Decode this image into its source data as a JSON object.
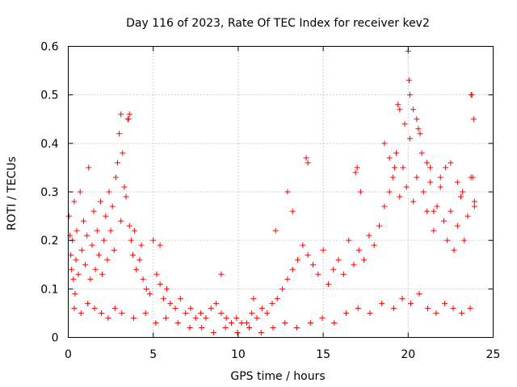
{
  "chart_data": {
    "type": "scatter",
    "title": "Day 116 of 2023, Rate Of TEC Index for receiver kev2",
    "xlabel": "GPS time / hours",
    "ylabel": "ROTI / TECUs",
    "xlim": [
      0,
      25
    ],
    "ylim": [
      0,
      0.6
    ],
    "xticks": [
      0,
      5,
      10,
      15,
      20,
      25
    ],
    "yticks": [
      0,
      0.1,
      0.2,
      0.3,
      0.4,
      0.5,
      0.6
    ],
    "grid": true,
    "marker": "+",
    "color": "#ff0000",
    "series": [
      {
        "name": "ROTI",
        "x": [
          0.05,
          0.1,
          0.15,
          0.2,
          0.25,
          0.3,
          0.35,
          0.4,
          0.45,
          0.5,
          0.6,
          0.7,
          0.8,
          0.9,
          1.0,
          1.1,
          1.2,
          1.3,
          1.4,
          1.5,
          1.6,
          1.7,
          1.8,
          1.9,
          2.0,
          2.1,
          2.2,
          2.3,
          2.4,
          2.5,
          2.6,
          2.7,
          2.8,
          2.9,
          3.0,
          3.1,
          3.2,
          3.3,
          3.4,
          3.5,
          3.6,
          3.7,
          3.8,
          3.9,
          4.0,
          4.2,
          4.4,
          4.6,
          4.8,
          5.0,
          5.2,
          5.4,
          5.6,
          5.8,
          6.0,
          6.3,
          6.6,
          6.9,
          7.2,
          7.5,
          7.8,
          8.1,
          8.4,
          8.7,
          9.0,
          9.3,
          9.6,
          9.9,
          10.2,
          10.5,
          10.8,
          11.1,
          11.4,
          11.7,
          12.0,
          12.3,
          12.6,
          12.9,
          13.2,
          13.5,
          13.8,
          14.1,
          14.4,
          14.7,
          15.0,
          15.3,
          15.6,
          15.9,
          16.2,
          16.5,
          16.8,
          17.1,
          17.4,
          17.7,
          18.0,
          18.3,
          18.6,
          18.9,
          19.1,
          19.3,
          19.5,
          19.7,
          19.9,
          20.1,
          20.3,
          20.5,
          20.7,
          20.9,
          21.1,
          21.3,
          21.5,
          21.7,
          21.9,
          22.1,
          22.3,
          22.5,
          22.7,
          22.9,
          23.1,
          23.3,
          23.5,
          23.7,
          23.9,
          3.1,
          3.55,
          3.6,
          4.3,
          5.4,
          9.0,
          10.9,
          12.2,
          12.9,
          13.2,
          14.0,
          14.1,
          16.9,
          17.0,
          17.2,
          18.6,
          18.9,
          19.2,
          19.4,
          19.5,
          19.8,
          20.0,
          20.05,
          20.1,
          20.3,
          20.5,
          20.6,
          20.8,
          21.1,
          21.3,
          21.5,
          21.9,
          22.2,
          22.5,
          22.9,
          23.2,
          23.7,
          23.75,
          23.8,
          23.85,
          23.9,
          0.35,
          0.75,
          1.15,
          1.55,
          1.95,
          2.35,
          2.75,
          3.15,
          3.85,
          4.55,
          5.15,
          5.75,
          6.45,
          7.15,
          7.85,
          8.55,
          9.25,
          9.95,
          10.65,
          11.35,
          12.05,
          12.75,
          13.45,
          14.25,
          14.95,
          15.65,
          16.35,
          17.05,
          17.75,
          18.45,
          19.15,
          19.65,
          20.15,
          20.65,
          21.15,
          21.65,
          22.15,
          22.65,
          23.15,
          23.65
        ],
        "y": [
          0.25,
          0.21,
          0.17,
          0.14,
          0.2,
          0.12,
          0.28,
          0.09,
          0.16,
          0.22,
          0.13,
          0.3,
          0.18,
          0.24,
          0.15,
          0.21,
          0.35,
          0.12,
          0.19,
          0.26,
          0.14,
          0.22,
          0.17,
          0.28,
          0.13,
          0.2,
          0.25,
          0.16,
          0.3,
          0.22,
          0.27,
          0.18,
          0.33,
          0.36,
          0.42,
          0.24,
          0.38,
          0.31,
          0.29,
          0.45,
          0.23,
          0.2,
          0.17,
          0.22,
          0.14,
          0.16,
          0.12,
          0.1,
          0.09,
          0.2,
          0.13,
          0.11,
          0.08,
          0.1,
          0.07,
          0.06,
          0.08,
          0.05,
          0.06,
          0.04,
          0.05,
          0.04,
          0.06,
          0.07,
          0.05,
          0.04,
          0.03,
          0.04,
          0.03,
          0.03,
          0.05,
          0.04,
          0.06,
          0.05,
          0.07,
          0.08,
          0.1,
          0.12,
          0.14,
          0.16,
          0.19,
          0.17,
          0.15,
          0.13,
          0.18,
          0.11,
          0.14,
          0.16,
          0.13,
          0.2,
          0.15,
          0.18,
          0.16,
          0.21,
          0.19,
          0.23,
          0.27,
          0.3,
          0.33,
          0.38,
          0.29,
          0.35,
          0.31,
          0.41,
          0.28,
          0.33,
          0.42,
          0.3,
          0.26,
          0.35,
          0.22,
          0.27,
          0.31,
          0.24,
          0.2,
          0.26,
          0.18,
          0.23,
          0.29,
          0.2,
          0.25,
          0.33,
          0.28,
          0.46,
          0.45,
          0.46,
          0.19,
          0.19,
          0.13,
          0.08,
          0.22,
          0.3,
          0.26,
          0.37,
          0.36,
          0.34,
          0.35,
          0.3,
          0.4,
          0.37,
          0.35,
          0.48,
          0.47,
          0.44,
          0.59,
          0.53,
          0.5,
          0.47,
          0.45,
          0.43,
          0.38,
          0.36,
          0.32,
          0.26,
          0.33,
          0.35,
          0.36,
          0.32,
          0.3,
          0.5,
          0.5,
          0.33,
          0.45,
          0.27,
          0.06,
          0.05,
          0.07,
          0.06,
          0.05,
          0.04,
          0.06,
          0.05,
          0.04,
          0.05,
          0.03,
          0.04,
          0.03,
          0.02,
          0.02,
          0.01,
          0.02,
          0.01,
          0.02,
          0.01,
          0.02,
          0.03,
          0.02,
          0.03,
          0.04,
          0.03,
          0.05,
          0.06,
          0.05,
          0.07,
          0.06,
          0.08,
          0.07,
          0.09,
          0.06,
          0.05,
          0.07,
          0.06,
          0.05,
          0.06
        ]
      }
    ]
  }
}
